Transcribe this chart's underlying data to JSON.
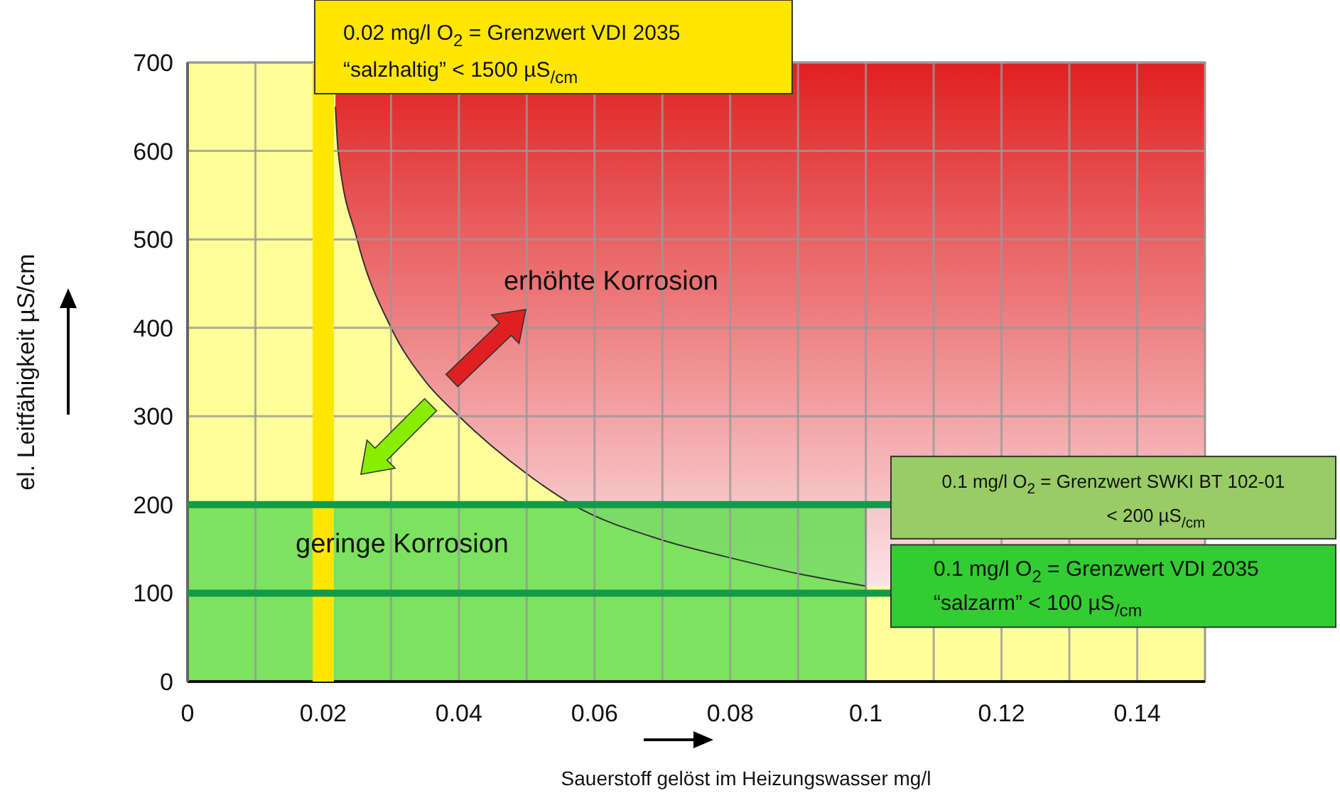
{
  "chart_data": {
    "type": "area",
    "xlabel": "Sauerstoff gelöst im Heizungswasser mg/l",
    "ylabel": "el. Leitfähigkeit µS/cm",
    "xlim": [
      0,
      0.15
    ],
    "ylim": [
      0,
      700
    ],
    "xticks": [
      0,
      {
        "value": 0.01,
        "label": null
      },
      0.02,
      {
        "value": 0.03,
        "label": null
      },
      0.04,
      {
        "value": 0.05,
        "label": null
      },
      0.06,
      {
        "value": 0.07,
        "label": null
      },
      0.08,
      {
        "value": 0.09,
        "label": null
      },
      0.1,
      {
        "value": 0.11,
        "label": null
      },
      0.12,
      {
        "value": 0.13,
        "label": null
      },
      0.14
    ],
    "yticks": [
      0,
      100,
      200,
      300,
      400,
      500,
      600,
      700
    ],
    "grid": true,
    "series": [
      {
        "type": "line",
        "color": "#333333",
        "x": [
          0.0218,
          0.0222,
          0.025,
          0.03,
          0.035,
          0.04,
          0.05,
          0.0568,
          0.07,
          0.08,
          0.09,
          0.1
        ],
        "values": [
          650,
          600,
          500,
          400,
          340,
          300,
          235,
          200,
          160,
          140,
          122,
          108
        ]
      },
      {
        "color": "#66dd55",
        "x": [
          0,
          0.1
        ],
        "values": [
          200,
          200
        ]
      }
    ],
    "ref_lines": [
      {
        "axis": "x",
        "value": 0.02,
        "color": "#ffe600",
        "label": "0.02 mg/l O$_{2}$ = Grenzwert VDI 2035\n“salzhaltig”  < 1500 µS$_{/cm}$"
      },
      {
        "axis": "y",
        "value": 200,
        "color": "#129a48",
        "label": "0.1 mg/l O$_{2}$ = Grenzwert SWKI BT 102-01\n< 200 µS$_{/cm}$"
      },
      {
        "axis": "y",
        "value": 100,
        "color": "#129a48",
        "label": "0.1 mg/l O$_{2}$ = Grenzwert VDI 2035\n“salzarm”  < 100 µS$_{/cm}$"
      }
    ],
    "annotations": [
      "erhöhte Korrosion",
      "geringe Korrosion"
    ]
  }
}
